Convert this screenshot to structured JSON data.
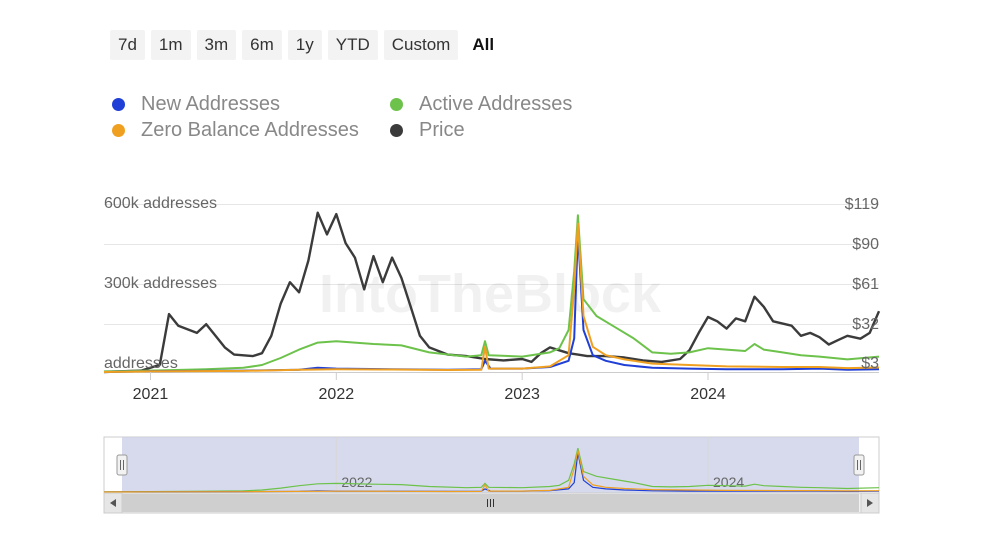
{
  "range_selector": {
    "buttons": [
      "7d",
      "1m",
      "3m",
      "6m",
      "1y",
      "YTD",
      "Custom",
      "All"
    ],
    "selected": "All"
  },
  "watermark": "IntoTheBlock",
  "colors": {
    "new_addresses": "#1f3fd6",
    "active_addresses": "#6cc24a",
    "zero_balance": "#f0a020",
    "price": "#3b3b3b"
  },
  "chart_data": {
    "type": "line",
    "x_tick_labels": [
      "2021",
      "2022",
      "2023",
      "2024"
    ],
    "y_left_tick_labels": [
      "600k addresses",
      "300k addresses",
      "addresses"
    ],
    "y_right_tick_labels": [
      "$119",
      "$90",
      "$61",
      "$32",
      "$3"
    ],
    "y_left_range": [
      0,
      600000
    ],
    "y_right_range": [
      3,
      119
    ],
    "x_range": [
      2020.75,
      2024.92
    ],
    "grid": true,
    "legend_position": "top-left",
    "navigator_tick_labels": [
      "2022",
      "2024"
    ],
    "series": [
      {
        "name": "New Addresses",
        "axis": "left",
        "points": [
          [
            2020.75,
            0
          ],
          [
            2021.0,
            3000
          ],
          [
            2021.5,
            5000
          ],
          [
            2021.8,
            8000
          ],
          [
            2021.9,
            15000
          ],
          [
            2022.0,
            12000
          ],
          [
            2022.3,
            10000
          ],
          [
            2022.6,
            8000
          ],
          [
            2022.78,
            10000
          ],
          [
            2022.8,
            40000
          ],
          [
            2022.83,
            12000
          ],
          [
            2023.0,
            12000
          ],
          [
            2023.15,
            18000
          ],
          [
            2023.25,
            40000
          ],
          [
            2023.28,
            120000
          ],
          [
            2023.3,
            500000
          ],
          [
            2023.33,
            150000
          ],
          [
            2023.38,
            60000
          ],
          [
            2023.45,
            40000
          ],
          [
            2023.55,
            25000
          ],
          [
            2023.7,
            15000
          ],
          [
            2023.9,
            12000
          ],
          [
            2024.1,
            10000
          ],
          [
            2024.4,
            10000
          ],
          [
            2024.6,
            12000
          ],
          [
            2024.75,
            8000
          ],
          [
            2024.92,
            10000
          ]
        ]
      },
      {
        "name": "Active Addresses",
        "axis": "left",
        "points": [
          [
            2020.75,
            2000
          ],
          [
            2021.0,
            5000
          ],
          [
            2021.3,
            10000
          ],
          [
            2021.5,
            15000
          ],
          [
            2021.6,
            25000
          ],
          [
            2021.7,
            50000
          ],
          [
            2021.8,
            80000
          ],
          [
            2021.9,
            105000
          ],
          [
            2022.0,
            110000
          ],
          [
            2022.2,
            100000
          ],
          [
            2022.35,
            95000
          ],
          [
            2022.5,
            70000
          ],
          [
            2022.7,
            55000
          ],
          [
            2022.78,
            60000
          ],
          [
            2022.8,
            110000
          ],
          [
            2022.82,
            60000
          ],
          [
            2023.0,
            55000
          ],
          [
            2023.15,
            70000
          ],
          [
            2023.2,
            85000
          ],
          [
            2023.25,
            150000
          ],
          [
            2023.28,
            360000
          ],
          [
            2023.3,
            560000
          ],
          [
            2023.33,
            260000
          ],
          [
            2023.4,
            200000
          ],
          [
            2023.5,
            160000
          ],
          [
            2023.6,
            120000
          ],
          [
            2023.7,
            70000
          ],
          [
            2023.8,
            65000
          ],
          [
            2023.9,
            70000
          ],
          [
            2024.0,
            85000
          ],
          [
            2024.1,
            80000
          ],
          [
            2024.2,
            75000
          ],
          [
            2024.25,
            100000
          ],
          [
            2024.3,
            80000
          ],
          [
            2024.4,
            70000
          ],
          [
            2024.5,
            60000
          ],
          [
            2024.6,
            55000
          ],
          [
            2024.75,
            45000
          ],
          [
            2024.92,
            55000
          ]
        ]
      },
      {
        "name": "Zero Balance Addresses",
        "axis": "left",
        "points": [
          [
            2020.75,
            0
          ],
          [
            2021.0,
            2000
          ],
          [
            2021.5,
            4000
          ],
          [
            2021.8,
            8000
          ],
          [
            2022.0,
            10000
          ],
          [
            2022.3,
            9000
          ],
          [
            2022.6,
            7000
          ],
          [
            2022.78,
            8000
          ],
          [
            2022.8,
            90000
          ],
          [
            2022.82,
            12000
          ],
          [
            2023.0,
            12000
          ],
          [
            2023.15,
            20000
          ],
          [
            2023.25,
            60000
          ],
          [
            2023.28,
            300000
          ],
          [
            2023.3,
            530000
          ],
          [
            2023.33,
            200000
          ],
          [
            2023.38,
            90000
          ],
          [
            2023.45,
            60000
          ],
          [
            2023.55,
            45000
          ],
          [
            2023.7,
            30000
          ],
          [
            2023.9,
            25000
          ],
          [
            2024.1,
            20000
          ],
          [
            2024.4,
            18000
          ],
          [
            2024.6,
            18000
          ],
          [
            2024.75,
            14000
          ],
          [
            2024.92,
            16000
          ]
        ]
      },
      {
        "name": "Price",
        "axis": "right",
        "points": [
          [
            2020.75,
            3
          ],
          [
            2020.95,
            4
          ],
          [
            2021.05,
            8
          ],
          [
            2021.1,
            43
          ],
          [
            2021.15,
            35
          ],
          [
            2021.25,
            30
          ],
          [
            2021.3,
            36
          ],
          [
            2021.35,
            28
          ],
          [
            2021.4,
            20
          ],
          [
            2021.45,
            15
          ],
          [
            2021.55,
            14
          ],
          [
            2021.6,
            16
          ],
          [
            2021.65,
            28
          ],
          [
            2021.7,
            50
          ],
          [
            2021.75,
            65
          ],
          [
            2021.8,
            58
          ],
          [
            2021.85,
            80
          ],
          [
            2021.9,
            113
          ],
          [
            2021.95,
            98
          ],
          [
            2022.0,
            112
          ],
          [
            2022.05,
            92
          ],
          [
            2022.1,
            82
          ],
          [
            2022.15,
            60
          ],
          [
            2022.2,
            83
          ],
          [
            2022.25,
            65
          ],
          [
            2022.3,
            82
          ],
          [
            2022.35,
            68
          ],
          [
            2022.4,
            48
          ],
          [
            2022.45,
            28
          ],
          [
            2022.5,
            20
          ],
          [
            2022.6,
            15
          ],
          [
            2022.7,
            14
          ],
          [
            2022.8,
            12
          ],
          [
            2022.9,
            11
          ],
          [
            2023.0,
            12
          ],
          [
            2023.05,
            10
          ],
          [
            2023.1,
            16
          ],
          [
            2023.15,
            20
          ],
          [
            2023.2,
            18
          ],
          [
            2023.25,
            16
          ],
          [
            2023.3,
            15
          ],
          [
            2023.35,
            14
          ],
          [
            2023.45,
            14
          ],
          [
            2023.55,
            13
          ],
          [
            2023.65,
            11
          ],
          [
            2023.75,
            10
          ],
          [
            2023.85,
            12
          ],
          [
            2023.9,
            18
          ],
          [
            2023.95,
            30
          ],
          [
            2024.0,
            41
          ],
          [
            2024.05,
            38
          ],
          [
            2024.1,
            33
          ],
          [
            2024.15,
            40
          ],
          [
            2024.2,
            38
          ],
          [
            2024.25,
            55
          ],
          [
            2024.3,
            48
          ],
          [
            2024.35,
            38
          ],
          [
            2024.45,
            35
          ],
          [
            2024.5,
            28
          ],
          [
            2024.55,
            30
          ],
          [
            2024.6,
            27
          ],
          [
            2024.65,
            22
          ],
          [
            2024.7,
            25
          ],
          [
            2024.75,
            28
          ],
          [
            2024.82,
            26
          ],
          [
            2024.87,
            30
          ],
          [
            2024.92,
            45
          ]
        ]
      }
    ]
  }
}
